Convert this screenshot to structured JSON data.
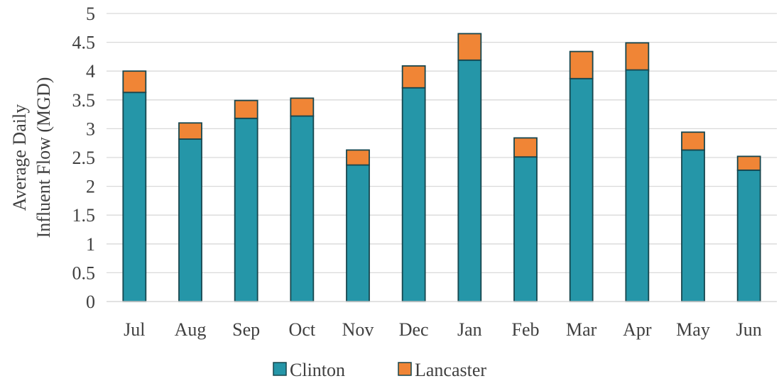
{
  "chart_data": {
    "type": "bar",
    "stacked": true,
    "title": "",
    "xlabel": "",
    "ylabel": [
      "Average Daily",
      "Influent Flow (MGD)"
    ],
    "ylim": [
      0,
      5
    ],
    "yticks": [
      0,
      0.5,
      1,
      1.5,
      2,
      2.5,
      3,
      3.5,
      4,
      4.5,
      5
    ],
    "ytick_labels": [
      "0",
      "0.5",
      "1",
      "1.5",
      "2",
      "2.5",
      "3",
      "3.5",
      "4",
      "4.5",
      "5"
    ],
    "grid": true,
    "legend_position": "bottom",
    "categories": [
      "Jul",
      "Aug",
      "Sep",
      "Oct",
      "Nov",
      "Dec",
      "Jan",
      "Feb",
      "Mar",
      "Apr",
      "May",
      "Jun"
    ],
    "series": [
      {
        "name": "Clinton",
        "color": "#2596A8",
        "values": [
          3.63,
          2.82,
          3.18,
          3.22,
          2.37,
          3.71,
          4.19,
          2.51,
          3.87,
          4.02,
          2.63,
          2.28
        ]
      },
      {
        "name": "Lancaster",
        "color": "#F08536",
        "values": [
          0.37,
          0.28,
          0.31,
          0.31,
          0.26,
          0.38,
          0.46,
          0.33,
          0.47,
          0.47,
          0.31,
          0.24
        ]
      }
    ]
  }
}
